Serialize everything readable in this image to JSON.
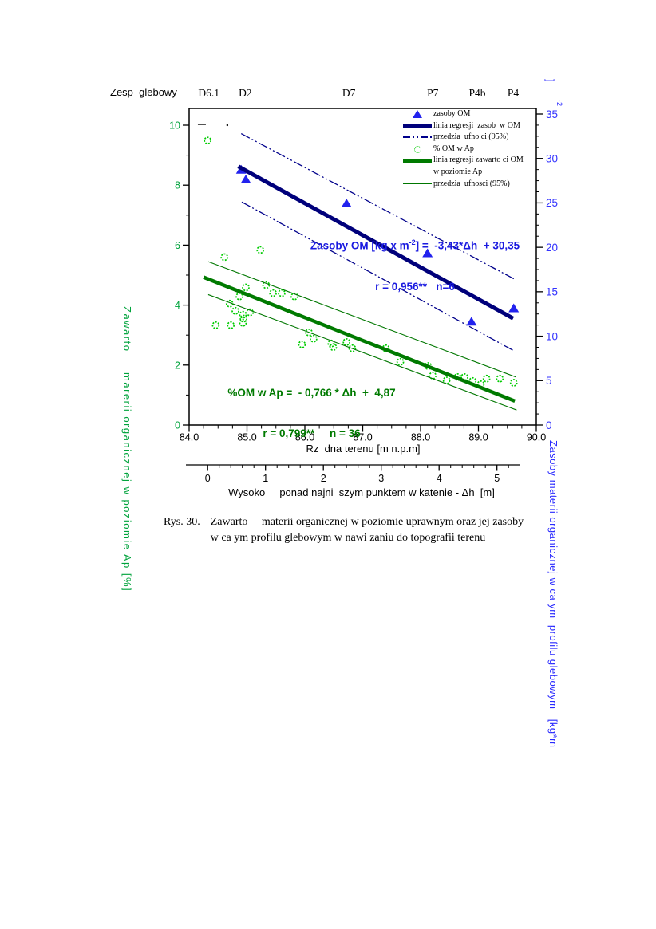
{
  "header": {
    "prefix": "Zesp  glebowy",
    "soil_units": [
      {
        "label": "D6.1",
        "x_m": 84.34
      },
      {
        "label": "D2",
        "x_m": 84.97
      },
      {
        "label": "D7",
        "x_m": 86.76
      },
      {
        "label": "P7",
        "x_m": 88.21
      },
      {
        "label": "P4b",
        "x_m": 88.98
      },
      {
        "label": "P4",
        "x_m": 89.6
      }
    ]
  },
  "legend": {
    "items": [
      {
        "label": "zasoby OM"
      },
      {
        "label": "linia regresji  zasob  w OM"
      },
      {
        "label": "przedzia  ufno ci (95%)"
      },
      {
        "label": "% OM w Ap"
      },
      {
        "label": "linia regresji zawarto ci OM",
        "label2": "w poziomie Ap"
      },
      {
        "label": "przedzia  ufnosci (95%)"
      }
    ]
  },
  "equations": {
    "blue": {
      "pre": "Zasoby OM [kg x m",
      "sup": "-2",
      "post": "] =  -3,43*Δh  + 30,35",
      "line2": "r = 0,956**   n=6"
    },
    "green": {
      "line1": "%OM w Ap =  - 0,766 * Δh  +  4,87",
      "line2": "r = 0,799**     n = 36"
    }
  },
  "axes": {
    "x1": {
      "title": "Rz  dna terenu [m n.p.m]",
      "tick_labels": [
        "84.0",
        "85.0",
        "86.0",
        "87.0",
        "88.0",
        "89.0",
        "90.0"
      ]
    },
    "x2": {
      "title": "Wysoko     ponad najni  szym punktem w katenie - Δh  [m]",
      "tick_labels": [
        "0",
        "1",
        "2",
        "3",
        "4",
        "5"
      ]
    },
    "y_left": {
      "label": "Zawarto     marerii organicznej w poziomie Ap [%]",
      "tick_labels": [
        "0",
        "2",
        "4",
        "6",
        "8",
        "10"
      ]
    },
    "y_right": {
      "label": "Zasoby materii organicznej w ca ym  profilu glebowym   [kg*m",
      "label_wrap_bracket": "]",
      "label_wrap_sup": "-2",
      "tick_labels": [
        "0",
        "5",
        "10",
        "15",
        "20",
        "25",
        "30",
        "35"
      ]
    }
  },
  "caption": {
    "tag": "Rys. 30.",
    "line1": "Zawarto     materii organicznej w poziomie uprawnym oraz jej zasoby",
    "line2": "w ca ym profilu glebowym w nawi zaniu do topografii terenu"
  },
  "colors": {
    "frame": "#000000",
    "blue_marker": "#2222EE",
    "navy_regression": "#00007B",
    "blue_ci": "#00008B",
    "blue_text": "#1A1AE0",
    "blue_ticks": "#3333FF",
    "blue_axis_label": "#2A2AFF",
    "green_marker": "#00CC00",
    "green_regression": "#007A00",
    "green_ci": "#007700",
    "green_text": "#007A00",
    "green_ticks": "#00A33C"
  },
  "chart_data": {
    "type": "scatter",
    "title": "",
    "x_axis": {
      "label": "Rz dna terenu [m n.p.m]",
      "range": [
        84.0,
        90.0
      ],
      "ticks": [
        84,
        85,
        86,
        87,
        88,
        89,
        90
      ],
      "minor_step": 0.25
    },
    "x2_axis": {
      "label": "Wysoko ponad najni szym punktem w katenie - Δh [m]",
      "range": [
        0,
        5.3
      ],
      "ticks": [
        0,
        1,
        2,
        3,
        4,
        5
      ],
      "minor_step": 0.2,
      "offset_m": 84.32
    },
    "y_left_axis": {
      "label": "Zawarto marerii organicznej w poziomie Ap [%]",
      "range": [
        0,
        10.56
      ],
      "ticks": [
        0,
        2,
        4,
        6,
        8,
        10
      ],
      "minor_step": 1
    },
    "y_right_axis": {
      "label": "Zasoby materii organicznej w ca ym profilu glebowym [kg*m-2]",
      "range": [
        0,
        35.7
      ],
      "ticks": [
        0,
        5,
        10,
        15,
        20,
        25,
        30,
        35
      ],
      "minor_step": 1.25
    },
    "legend_position": "top-right-inside",
    "grid": false,
    "regressions": {
      "zasoby_OM": {
        "equation": "Zasoby OM [kg x m-2] = -3,43*Δh + 30,35",
        "r": "0,956**",
        "n": 6
      },
      "procent_OM_w_Ap": {
        "equation": "%OM w Ap = -0,766*Δh + 4,87",
        "r": "0,799**",
        "n": 36
      }
    },
    "series": [
      {
        "name": "zasoby OM",
        "kind": "scatter",
        "marker": "triangle",
        "axis": "right",
        "color": "#2222EE",
        "points": [
          [
            84.9,
            28.7
          ],
          [
            84.98,
            27.6
          ],
          [
            86.72,
            24.9
          ],
          [
            88.12,
            19.3
          ],
          [
            88.88,
            11.6
          ],
          [
            89.61,
            13.1
          ]
        ]
      },
      {
        "name": "linia regresji zasob w OM",
        "kind": "line",
        "axis": "right",
        "color": "#00007B",
        "width": 5,
        "points": [
          [
            84.85,
            29.1
          ],
          [
            89.6,
            12.0
          ]
        ]
      },
      {
        "name": "przedzia ufno ci (95%) zasoby - gorna",
        "kind": "line",
        "axis": "right",
        "color": "#00008B",
        "width": 1.3,
        "dash": "12 3 2 3 2 3",
        "points": [
          [
            84.9,
            32.8
          ],
          [
            89.63,
            16.4
          ]
        ]
      },
      {
        "name": "przedzia ufno ci (95%) zasoby - dolna",
        "kind": "line",
        "axis": "right",
        "color": "#00008B",
        "width": 1.3,
        "dash": "12 3 2 3 2 3",
        "points": [
          [
            84.91,
            25.1
          ],
          [
            89.6,
            8.4
          ]
        ]
      },
      {
        "name": "% OM w Ap",
        "kind": "scatter",
        "marker": "circle",
        "axis": "left",
        "color": "#00CC00",
        "points": [
          [
            84.32,
            9.49
          ],
          [
            84.61,
            5.6
          ],
          [
            85.23,
            5.84
          ],
          [
            84.98,
            4.59
          ],
          [
            85.33,
            4.67
          ],
          [
            84.87,
            4.29
          ],
          [
            85.45,
            4.4
          ],
          [
            85.6,
            4.4
          ],
          [
            85.82,
            4.29
          ],
          [
            84.7,
            4.05
          ],
          [
            84.8,
            3.81
          ],
          [
            84.93,
            3.68
          ],
          [
            84.94,
            3.55
          ],
          [
            85.05,
            3.76
          ],
          [
            84.46,
            3.33
          ],
          [
            84.72,
            3.33
          ],
          [
            84.93,
            3.41
          ],
          [
            86.07,
            3.09
          ],
          [
            86.15,
            2.88
          ],
          [
            85.95,
            2.69
          ],
          [
            86.46,
            2.72
          ],
          [
            86.49,
            2.6
          ],
          [
            86.72,
            2.77
          ],
          [
            86.82,
            2.56
          ],
          [
            87.4,
            2.56
          ],
          [
            87.65,
            2.11
          ],
          [
            88.13,
            1.97
          ],
          [
            88.21,
            1.65
          ],
          [
            88.45,
            1.49
          ],
          [
            88.64,
            1.6
          ],
          [
            88.76,
            1.6
          ],
          [
            88.9,
            1.47
          ],
          [
            89.04,
            1.36
          ],
          [
            89.14,
            1.55
          ],
          [
            89.37,
            1.55
          ],
          [
            89.61,
            1.41
          ]
        ]
      },
      {
        "name": "linia regresji zawarto ci OM w poziomie Ap",
        "kind": "line",
        "axis": "left",
        "color": "#007A00",
        "width": 4.5,
        "points": [
          [
            84.25,
            4.93
          ],
          [
            89.63,
            0.8
          ]
        ]
      },
      {
        "name": "przedzia ufnosci (95%) zawartosc - gorna",
        "kind": "line",
        "axis": "left",
        "color": "#007700",
        "width": 1.1,
        "points": [
          [
            84.33,
            5.45
          ],
          [
            89.65,
            1.6
          ]
        ]
      },
      {
        "name": "przedzia ufnosci (95%) zawartosc - dolna",
        "kind": "line",
        "axis": "left",
        "color": "#007700",
        "width": 1.1,
        "points": [
          [
            84.33,
            4.35
          ],
          [
            89.66,
            0.5
          ]
        ]
      }
    ],
    "annotations": [
      {
        "kind": "dash",
        "axis": "left",
        "x": 84.22,
        "y": 10.03
      },
      {
        "kind": "dot",
        "axis": "left",
        "x": 84.66,
        "y": 10.0
      }
    ]
  }
}
